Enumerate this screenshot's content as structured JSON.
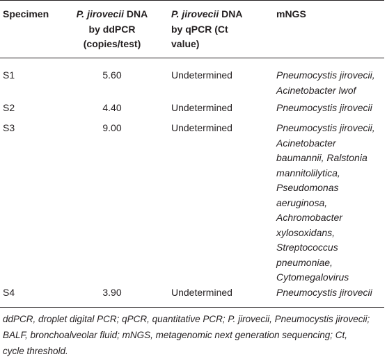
{
  "table": {
    "headers": {
      "specimen": "Specimen",
      "ddpcr": {
        "species": "P. jirovecii",
        "rest": " DNA",
        "line2": "by ddPCR",
        "line3": "(copies/test)"
      },
      "qpcr": {
        "species": "P. jirovecii",
        "rest": " DNA",
        "line2": "by qPCR (Ct",
        "line3": "value)"
      },
      "mngs": "mNGS"
    },
    "rows": [
      {
        "specimen": "S1",
        "ddpcr": "5.60",
        "qpcr": "Undetermined",
        "mngs": [
          "Pneumocystis jirovecii,",
          "Acinetobacter lwof"
        ]
      },
      {
        "specimen": "S2",
        "ddpcr": "4.40",
        "qpcr": "Undetermined",
        "mngs": [
          "Pneumocystis jirovecii"
        ]
      },
      {
        "specimen": "S3",
        "ddpcr": "9.00",
        "qpcr": "Undetermined",
        "mngs": [
          "Pneumocystis jirovecii,",
          "Acinetobacter",
          "baumannii, Ralstonia",
          "mannitolilytica,",
          "Pseudomonas",
          "aeruginosa,",
          "Achromobacter",
          "xylosoxidans,",
          "Streptococcus",
          "pneumoniae,",
          "Cytomegalovirus"
        ]
      },
      {
        "specimen": "S4",
        "ddpcr": "3.90",
        "qpcr": "Undetermined",
        "mngs": [
          "Pneumocystis jirovecii"
        ]
      }
    ],
    "footnote": [
      "ddPCR, droplet digital PCR; qPCR, quantitative PCR; P. jirovecii, Pneumocystis jirovecii;",
      "BALF, bronchoalveolar fluid; mNGS, metagenomic next generation sequencing; Ct,",
      "cycle threshold."
    ]
  }
}
